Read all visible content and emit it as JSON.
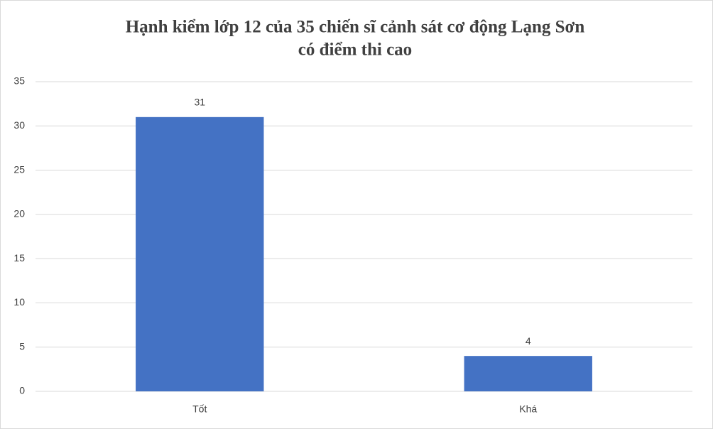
{
  "chart_data": {
    "type": "bar",
    "title": [
      "Hạnh kiểm lớp 12 của 35 chiến sĩ cảnh sát cơ động Lạng Sơn",
      "có điểm thi cao"
    ],
    "categories": [
      "Tốt",
      "Khá"
    ],
    "values": [
      31,
      4
    ],
    "color": "#4472c4",
    "ylim": [
      0,
      35
    ],
    "yticks": [
      0,
      5,
      10,
      15,
      20,
      25,
      30,
      35
    ],
    "grid": true
  }
}
